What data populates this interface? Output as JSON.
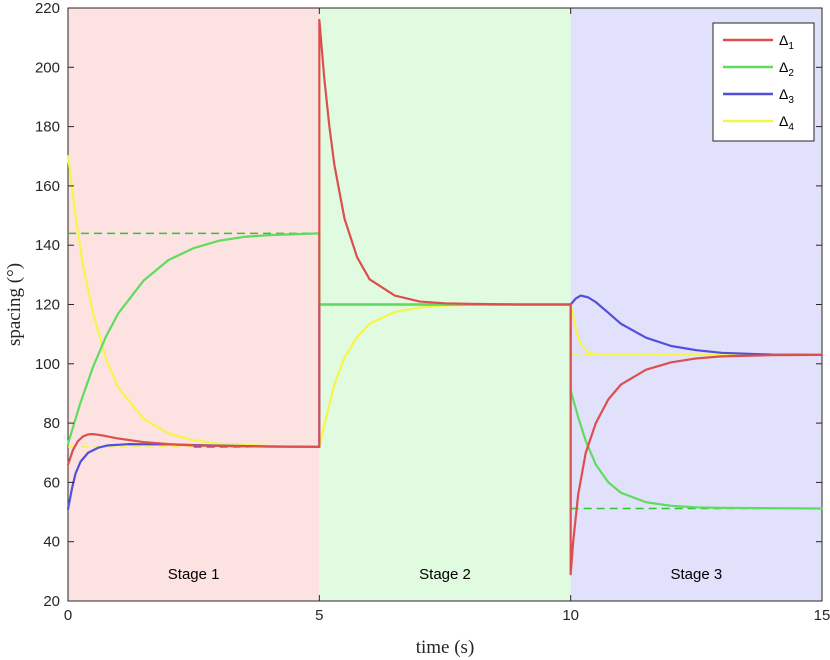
{
  "chart_data": {
    "type": "line",
    "xlabel": "time (s)",
    "ylabel": "spacing (°)",
    "xlim": [
      0,
      15
    ],
    "ylim": [
      20,
      220
    ],
    "xticks": [
      0,
      5,
      10,
      15
    ],
    "yticks": [
      20,
      40,
      60,
      80,
      100,
      120,
      140,
      160,
      180,
      200,
      220
    ],
    "grid": false,
    "legend_position": "top-right",
    "stages": [
      {
        "label": "Stage 1",
        "x_range": [
          0,
          5
        ],
        "color": "#fde2e2"
      },
      {
        "label": "Stage 2",
        "x_range": [
          5,
          10
        ],
        "color": "#e1fbe0"
      },
      {
        "label": "Stage 3",
        "x_range": [
          10,
          15
        ],
        "color": "#e1e1fb"
      }
    ],
    "series": [
      {
        "name": "Δ",
        "subscript": "1",
        "color": "#dc4f4f",
        "points": [
          [
            0,
            66
          ],
          [
            0.1,
            71
          ],
          [
            0.2,
            74
          ],
          [
            0.3,
            75.5
          ],
          [
            0.4,
            76.2
          ],
          [
            0.5,
            76.3
          ],
          [
            0.7,
            75.8
          ],
          [
            1.0,
            74.8
          ],
          [
            1.5,
            73.6
          ],
          [
            2.0,
            72.9
          ],
          [
            2.5,
            72.5
          ],
          [
            3.0,
            72.3
          ],
          [
            4.0,
            72.1
          ],
          [
            5.0,
            72.0
          ],
          [
            5.0,
            216
          ],
          [
            5.1,
            196
          ],
          [
            5.2,
            180
          ],
          [
            5.3,
            167
          ],
          [
            5.5,
            149
          ],
          [
            5.75,
            136
          ],
          [
            6.0,
            128.5
          ],
          [
            6.5,
            123
          ],
          [
            7.0,
            121
          ],
          [
            7.5,
            120.4
          ],
          [
            8.0,
            120.2
          ],
          [
            9.0,
            120.0
          ],
          [
            10.0,
            120.0
          ],
          [
            10.0,
            29
          ],
          [
            10.05,
            40
          ],
          [
            10.15,
            56
          ],
          [
            10.3,
            70
          ],
          [
            10.5,
            80
          ],
          [
            10.75,
            88
          ],
          [
            11.0,
            93
          ],
          [
            11.5,
            98
          ],
          [
            12.0,
            100.5
          ],
          [
            12.5,
            101.8
          ],
          [
            13.0,
            102.5
          ],
          [
            14.0,
            102.9
          ],
          [
            15.0,
            103.0
          ]
        ]
      },
      {
        "name": "Δ",
        "subscript": "2",
        "color": "#5fdc5f",
        "points": [
          [
            0,
            73
          ],
          [
            0.25,
            87
          ],
          [
            0.5,
            99
          ],
          [
            0.75,
            109
          ],
          [
            1.0,
            117
          ],
          [
            1.5,
            128
          ],
          [
            2.0,
            135
          ],
          [
            2.5,
            139
          ],
          [
            3.0,
            141.5
          ],
          [
            3.5,
            142.8
          ],
          [
            4.0,
            143.4
          ],
          [
            5.0,
            144.0
          ],
          [
            5.0,
            120.0
          ],
          [
            10.0,
            120.0
          ],
          [
            10.0,
            91
          ],
          [
            10.15,
            82
          ],
          [
            10.3,
            74
          ],
          [
            10.5,
            66
          ],
          [
            10.75,
            60
          ],
          [
            11.0,
            56.5
          ],
          [
            11.5,
            53.3
          ],
          [
            12.0,
            52.1
          ],
          [
            12.5,
            51.6
          ],
          [
            13.0,
            51.4
          ],
          [
            15.0,
            51.2
          ]
        ]
      },
      {
        "name": "Δ",
        "subscript": "3",
        "color": "#5050dc",
        "points": [
          [
            0,
            51
          ],
          [
            0.08,
            58
          ],
          [
            0.15,
            63
          ],
          [
            0.25,
            67
          ],
          [
            0.4,
            70
          ],
          [
            0.6,
            71.7
          ],
          [
            0.8,
            72.5
          ],
          [
            1.2,
            72.9
          ],
          [
            2.0,
            72.8
          ],
          [
            3.0,
            72.4
          ],
          [
            4.0,
            72.1
          ],
          [
            5.0,
            72.0
          ],
          [
            5.0,
            120.0
          ],
          [
            10.0,
            120.0
          ],
          [
            10.0,
            120.0
          ],
          [
            10.1,
            122
          ],
          [
            10.2,
            123
          ],
          [
            10.35,
            122.4
          ],
          [
            10.5,
            120.8
          ],
          [
            10.75,
            117.2
          ],
          [
            11.0,
            113.5
          ],
          [
            11.5,
            108.8
          ],
          [
            12.0,
            106
          ],
          [
            12.5,
            104.6
          ],
          [
            13.0,
            103.7
          ],
          [
            14.0,
            103.1
          ],
          [
            15.0,
            103.0
          ]
        ]
      },
      {
        "name": "Δ",
        "subscript": "4",
        "color": "#f5f54a",
        "points": [
          [
            0,
            170
          ],
          [
            0.15,
            150
          ],
          [
            0.3,
            133
          ],
          [
            0.5,
            117
          ],
          [
            0.75,
            102
          ],
          [
            1.0,
            92
          ],
          [
            1.5,
            81.5
          ],
          [
            2.0,
            76.5
          ],
          [
            2.5,
            74.2
          ],
          [
            3.0,
            73.1
          ],
          [
            4.0,
            72.3
          ],
          [
            5.0,
            72.0
          ],
          [
            5.0,
            72.0
          ],
          [
            5.15,
            83
          ],
          [
            5.3,
            93
          ],
          [
            5.5,
            102
          ],
          [
            5.75,
            109
          ],
          [
            6.0,
            113.5
          ],
          [
            6.5,
            117.5
          ],
          [
            7.0,
            119
          ],
          [
            7.5,
            119.6
          ],
          [
            8.0,
            119.9
          ],
          [
            10.0,
            120.0
          ],
          [
            10.0,
            120.0
          ],
          [
            10.1,
            112
          ],
          [
            10.2,
            106.5
          ],
          [
            10.35,
            104
          ],
          [
            10.5,
            103.2
          ],
          [
            11.0,
            103.0
          ],
          [
            15.0,
            103.0
          ]
        ]
      }
    ],
    "reference_lines": [
      {
        "color": "#2ec72e",
        "y": 144,
        "x_range": [
          0,
          5
        ]
      },
      {
        "color": "#f5f54a",
        "y": 72,
        "x_range": [
          0,
          5
        ]
      },
      {
        "color": "#5050dc",
        "y": 72,
        "x_range": [
          2.5,
          3.6
        ]
      },
      {
        "color": "#f5f54a",
        "y": 120,
        "x_range": [
          5,
          10
        ]
      },
      {
        "color": "#f5f54a",
        "y": 103,
        "x_range": [
          10,
          15
        ]
      },
      {
        "color": "#2ec72e",
        "y": 51.2,
        "x_range": [
          10,
          15
        ]
      }
    ],
    "reference_drops": [
      {
        "color": "#dc4f4f",
        "x": 5.0,
        "y_range": [
          72,
          120
        ]
      },
      {
        "color": "#f5f54a",
        "x": 5.0,
        "y_range": [
          72,
          120
        ]
      },
      {
        "color": "#f5f54a",
        "x": 10.0,
        "y_range": [
          103,
          120
        ]
      }
    ]
  }
}
